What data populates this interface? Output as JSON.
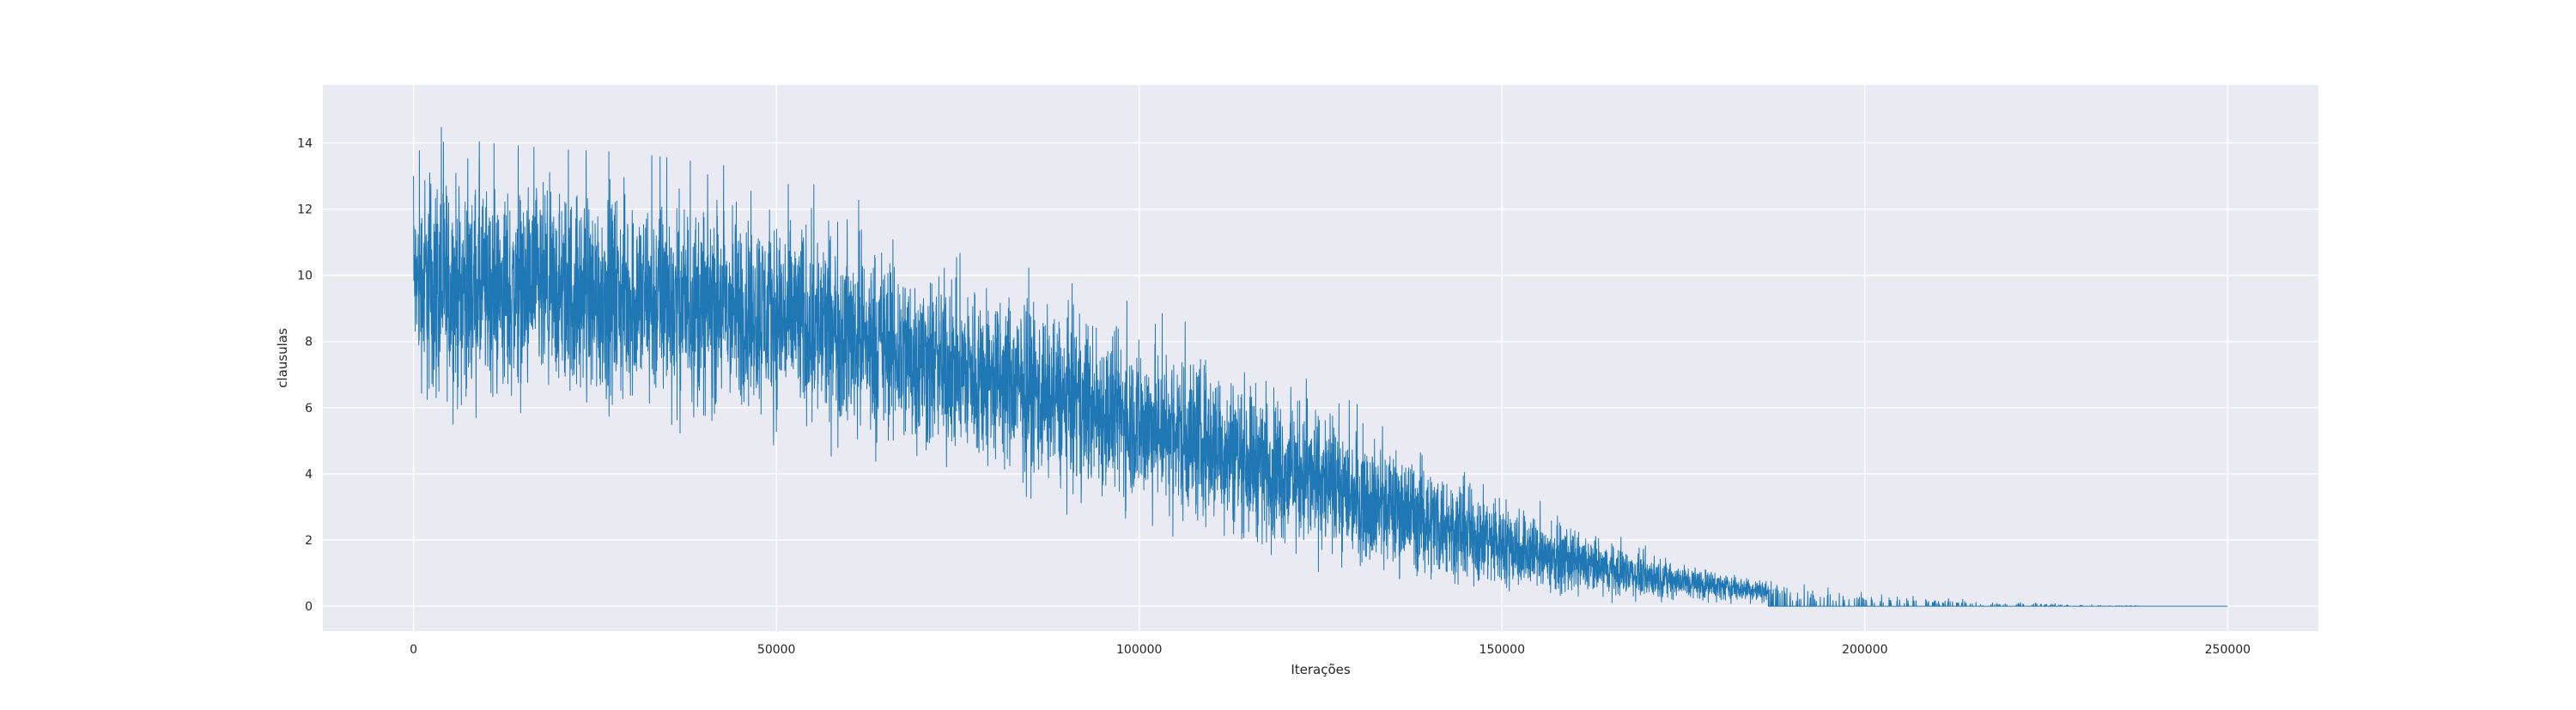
{
  "chart_data": {
    "type": "line",
    "title": "",
    "xlabel": "Iterações",
    "ylabel": "clausulas",
    "xlim": [
      -12500,
      262500
    ],
    "ylim": [
      -0.75,
      15.75
    ],
    "xticks": [
      0,
      50000,
      100000,
      150000,
      200000,
      250000
    ],
    "xtick_labels": [
      "0",
      "50000",
      "100000",
      "150000",
      "200000",
      "250000"
    ],
    "yticks": [
      0,
      2,
      4,
      6,
      8,
      10,
      12,
      14
    ],
    "ytick_labels": [
      "0",
      "2",
      "4",
      "6",
      "8",
      "10",
      "12",
      "14"
    ],
    "grid": true,
    "colors": {
      "line": "#1f77b4",
      "background": "#eaeaf2",
      "grid": "#ffffff"
    },
    "series": [
      {
        "name": "",
        "x": [
          0,
          2000,
          5000,
          10000,
          20000,
          30000,
          40000,
          50000,
          60000,
          70000,
          80000,
          90000,
          100000,
          110000,
          120000,
          130000,
          140000,
          150000,
          160000,
          170000,
          180000,
          190000,
          200000,
          210000,
          220000,
          230000,
          240000,
          250000
        ],
        "values": [
          9.5,
          10.0,
          9.2,
          9.1,
          9.0,
          8.9,
          8.7,
          8.5,
          8.0,
          7.4,
          6.8,
          6.3,
          5.6,
          4.9,
          4.1,
          3.3,
          2.5,
          1.7,
          1.0,
          0.6,
          0.3,
          0.15,
          0.08,
          0.04,
          0.02,
          0.01,
          0.0,
          0.0
        ],
        "y_min_envelope": [
          6.6,
          4.5,
          5.0,
          5.0,
          5.0,
          4.9,
          4.7,
          4.5,
          4.0,
          3.5,
          3.0,
          2.6,
          2.0,
          1.5,
          1.0,
          0.6,
          0.2,
          0.0,
          0.0,
          0.0,
          0.0,
          0.0,
          0.0,
          0.0,
          0.0,
          0.0,
          0.0,
          0.0
        ],
        "y_max_envelope": [
          13.0,
          14.9,
          14.2,
          14.0,
          13.8,
          13.7,
          13.4,
          13.1,
          12.4,
          11.4,
          10.6,
          9.8,
          9.1,
          8.3,
          7.2,
          6.1,
          5.0,
          3.8,
          2.6,
          1.8,
          1.2,
          0.7,
          0.4,
          0.25,
          0.12,
          0.05,
          0.0,
          0.0
        ]
      }
    ]
  }
}
